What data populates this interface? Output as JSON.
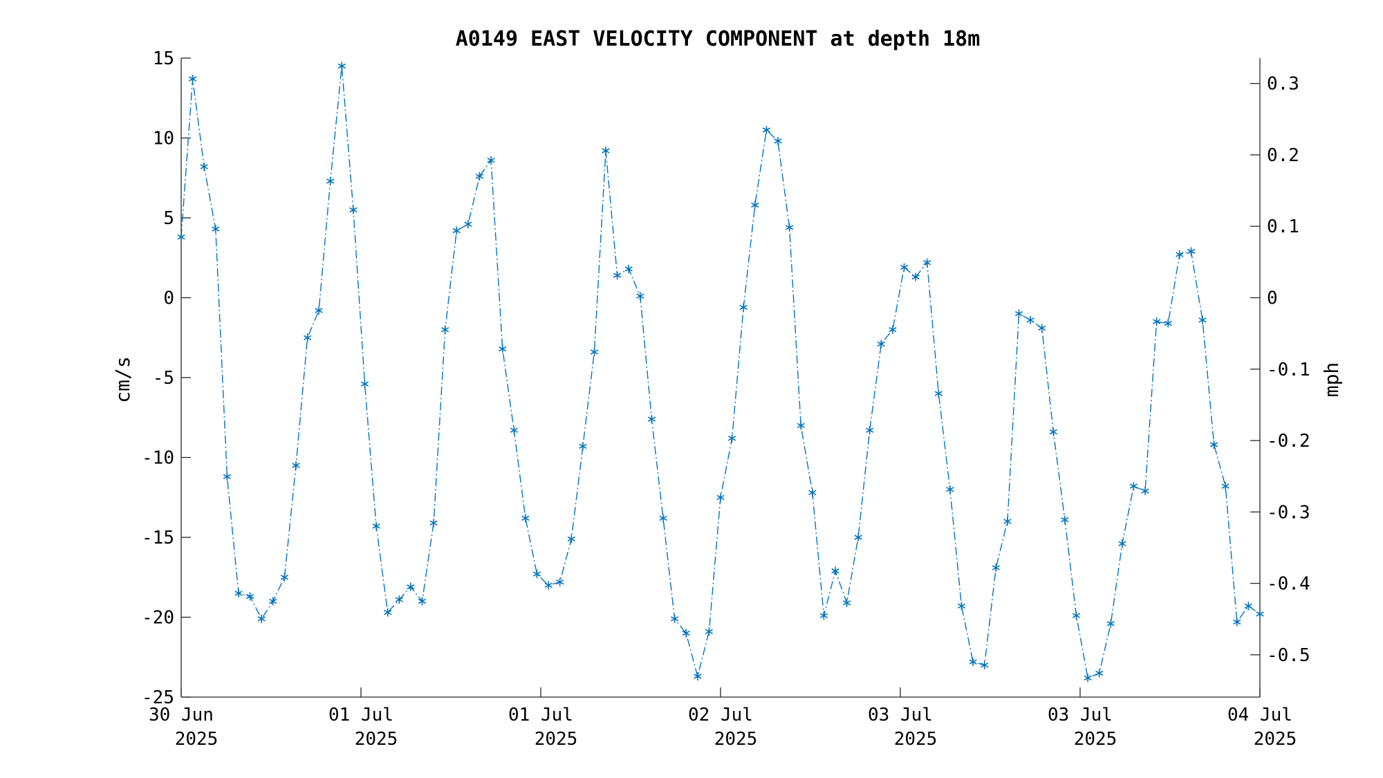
{
  "chart_data": {
    "type": "line",
    "title": "A0149 EAST VELOCITY COMPONENT at depth 18m",
    "ylabel": "cm/s",
    "y2label": "mph",
    "ylim": [
      -25,
      15
    ],
    "yticks": [
      "15",
      "10",
      "5",
      "0",
      "-5",
      "-10",
      "-15",
      "-20",
      "-25"
    ],
    "ytick_values": [
      15,
      10,
      5,
      0,
      -5,
      -10,
      -15,
      -20,
      -25
    ],
    "y2ticks": [
      "0.3",
      "0.2",
      "0.1",
      "0",
      "-0.1",
      "-0.2",
      "-0.3",
      "-0.4",
      "-0.5"
    ],
    "y2tick_values": [
      0.3,
      0.2,
      0.1,
      0,
      -0.1,
      -0.2,
      -0.3,
      -0.4,
      -0.5
    ],
    "xticks": [
      {
        "line1": "30 Jun",
        "line2": "2025"
      },
      {
        "line1": "01 Jul",
        "line2": "2025"
      },
      {
        "line1": "01 Jul",
        "line2": "2025"
      },
      {
        "line1": "02 Jul",
        "line2": "2025"
      },
      {
        "line1": "03 Jul",
        "line2": "2025"
      },
      {
        "line1": "03 Jul",
        "line2": "2025"
      },
      {
        "line1": "04 Jul",
        "line2": "2025"
      }
    ],
    "x_sample_spacing_hours": 1,
    "line_style": "dash-dot",
    "marker": "asterisk",
    "color": "#0072bd",
    "grid": false,
    "series": [
      {
        "values": [
          3.8,
          13.7,
          8.2,
          4.3,
          -11.2,
          -18.5,
          -18.7,
          -20.1,
          -19.0,
          -17.5,
          -10.5,
          -2.5,
          -0.8,
          7.3,
          14.5,
          5.5,
          -5.4,
          -14.3,
          -19.7,
          -18.9,
          -18.1,
          -19.0,
          -14.1,
          -2.0,
          4.2,
          4.6,
          7.6,
          8.6,
          -3.2,
          -8.3,
          -13.8,
          -17.3,
          -18.0,
          -17.8,
          -15.1,
          -9.3,
          -3.4,
          9.2,
          1.4,
          1.8,
          0.1,
          -7.6,
          -13.8,
          -20.1,
          -21.0,
          -23.7,
          -20.9,
          -12.5,
          -8.8,
          -0.6,
          5.8,
          10.5,
          9.8,
          4.4,
          -8.0,
          -12.2,
          -19.9,
          -17.1,
          -19.1,
          -15.0,
          -8.3,
          -2.9,
          -2.0,
          1.9,
          1.3,
          2.2,
          -6.0,
          -12.0,
          -19.3,
          -22.8,
          -23.0,
          -16.9,
          -14.0,
          -1.0,
          -1.4,
          -1.9,
          -8.4,
          -13.9,
          -19.9,
          -23.8,
          -23.5,
          -20.4,
          -15.4,
          -11.8,
          -12.1,
          -1.5,
          -1.6,
          2.7,
          2.9,
          -1.4,
          -9.2,
          -11.8,
          -20.3,
          -19.3,
          -19.8
        ]
      }
    ]
  }
}
